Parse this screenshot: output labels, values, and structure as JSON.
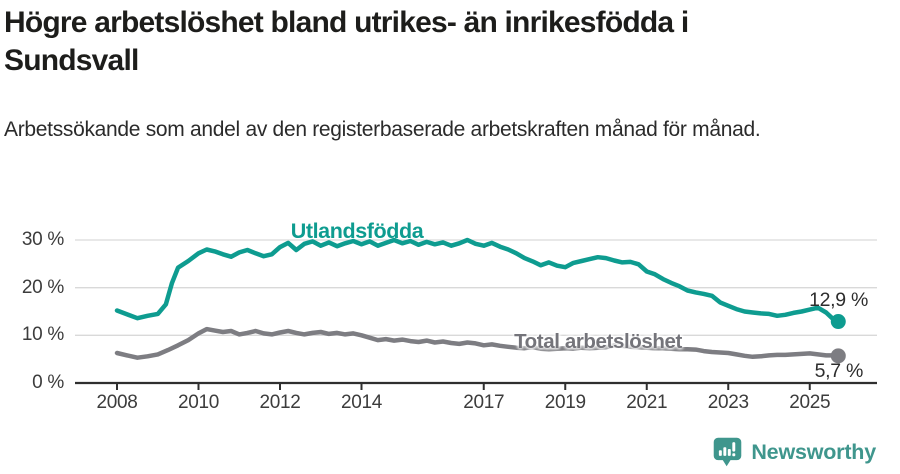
{
  "header": {
    "title": "Högre arbetslöshet bland utrikes- än inrikesfödda i Sundsvall",
    "subtitle": "Arbetssökande som andel av den registerbaserade arbetskraften månad för månad."
  },
  "footer": {
    "brand": "Newsworthy",
    "brand_color": "#3f968d",
    "logo_icon": "newsworthy-speech-bubble-chart-icon"
  },
  "chart_data": {
    "type": "line",
    "title": "Högre arbetslöshet bland utrikes- än inrikesfödda i Sundsvall",
    "subtitle": "Arbetssökande som andel av den registerbaserade arbetskraften månad för månad.",
    "unit": "%",
    "grid": "horizontal",
    "legend_position": "inline-labels",
    "xlim": [
      2008,
      2025.7
    ],
    "ylim": [
      0,
      30
    ],
    "x_tick_years": [
      2008,
      2010,
      2012,
      2014,
      2017,
      2019,
      2021,
      2023,
      2025
    ],
    "x_tick_labels": [
      "2008",
      "2010",
      "2012",
      "2014",
      "2017",
      "2019",
      "2021",
      "2023",
      "2025"
    ],
    "y_ticks": [
      0,
      10,
      20,
      30
    ],
    "y_tick_labels": [
      "0 %",
      "10 %",
      "20 %",
      "30 %"
    ],
    "colors": {
      "grid": "#d9d9d9",
      "axis": "#2f2f2f",
      "tick_text": "#3c3c3c",
      "end_label_text": "#2d2d2d"
    },
    "series": [
      {
        "name": "Utlandsfödda",
        "color": "#0e9c90",
        "end_label": "12,9 %",
        "end_value": 12.9,
        "points": [
          [
            2008.0,
            15.2
          ],
          [
            2008.25,
            14.4
          ],
          [
            2008.5,
            13.6
          ],
          [
            2008.75,
            14.1
          ],
          [
            2009.0,
            14.5
          ],
          [
            2009.2,
            16.5
          ],
          [
            2009.35,
            21.0
          ],
          [
            2009.5,
            24.2
          ],
          [
            2009.75,
            25.6
          ],
          [
            2010.0,
            27.2
          ],
          [
            2010.2,
            28.0
          ],
          [
            2010.4,
            27.6
          ],
          [
            2010.6,
            27.0
          ],
          [
            2010.8,
            26.5
          ],
          [
            2011.0,
            27.4
          ],
          [
            2011.2,
            27.9
          ],
          [
            2011.4,
            27.2
          ],
          [
            2011.6,
            26.6
          ],
          [
            2011.8,
            27.0
          ],
          [
            2012.0,
            28.5
          ],
          [
            2012.2,
            29.4
          ],
          [
            2012.4,
            27.9
          ],
          [
            2012.6,
            29.2
          ],
          [
            2012.8,
            29.7
          ],
          [
            2013.0,
            28.8
          ],
          [
            2013.2,
            29.5
          ],
          [
            2013.4,
            28.7
          ],
          [
            2013.6,
            29.3
          ],
          [
            2013.8,
            29.8
          ],
          [
            2014.0,
            29.1
          ],
          [
            2014.2,
            29.7
          ],
          [
            2014.4,
            28.8
          ],
          [
            2014.6,
            29.4
          ],
          [
            2014.8,
            30.0
          ],
          [
            2015.0,
            29.3
          ],
          [
            2015.2,
            29.8
          ],
          [
            2015.4,
            29.0
          ],
          [
            2015.6,
            29.6
          ],
          [
            2015.8,
            29.1
          ],
          [
            2016.0,
            29.5
          ],
          [
            2016.2,
            28.8
          ],
          [
            2016.4,
            29.3
          ],
          [
            2016.6,
            30.0
          ],
          [
            2016.8,
            29.2
          ],
          [
            2017.0,
            28.8
          ],
          [
            2017.2,
            29.4
          ],
          [
            2017.4,
            28.6
          ],
          [
            2017.6,
            28.0
          ],
          [
            2017.8,
            27.2
          ],
          [
            2018.0,
            26.2
          ],
          [
            2018.2,
            25.5
          ],
          [
            2018.4,
            24.7
          ],
          [
            2018.6,
            25.3
          ],
          [
            2018.8,
            24.6
          ],
          [
            2019.0,
            24.3
          ],
          [
            2019.2,
            25.2
          ],
          [
            2019.4,
            25.6
          ],
          [
            2019.6,
            26.0
          ],
          [
            2019.8,
            26.4
          ],
          [
            2020.0,
            26.2
          ],
          [
            2020.2,
            25.7
          ],
          [
            2020.4,
            25.3
          ],
          [
            2020.6,
            25.4
          ],
          [
            2020.8,
            24.9
          ],
          [
            2021.0,
            23.4
          ],
          [
            2021.2,
            22.8
          ],
          [
            2021.4,
            21.8
          ],
          [
            2021.6,
            21.0
          ],
          [
            2021.8,
            20.3
          ],
          [
            2022.0,
            19.4
          ],
          [
            2022.2,
            19.0
          ],
          [
            2022.4,
            18.7
          ],
          [
            2022.6,
            18.3
          ],
          [
            2022.8,
            16.9
          ],
          [
            2023.0,
            16.2
          ],
          [
            2023.2,
            15.5
          ],
          [
            2023.4,
            15.0
          ],
          [
            2023.6,
            14.8
          ],
          [
            2023.8,
            14.6
          ],
          [
            2024.0,
            14.5
          ],
          [
            2024.2,
            14.1
          ],
          [
            2024.4,
            14.3
          ],
          [
            2024.6,
            14.7
          ],
          [
            2024.8,
            15.0
          ],
          [
            2025.0,
            15.4
          ],
          [
            2025.2,
            15.8
          ],
          [
            2025.4,
            14.8
          ],
          [
            2025.55,
            13.6
          ],
          [
            2025.7,
            12.9
          ]
        ]
      },
      {
        "name": "Total arbetslöshet",
        "color": "#7d7d82",
        "end_label": "5,7 %",
        "end_value": 5.7,
        "points": [
          [
            2008.0,
            6.3
          ],
          [
            2008.25,
            5.8
          ],
          [
            2008.5,
            5.3
          ],
          [
            2008.75,
            5.6
          ],
          [
            2009.0,
            6.0
          ],
          [
            2009.25,
            6.9
          ],
          [
            2009.5,
            7.9
          ],
          [
            2009.75,
            9.0
          ],
          [
            2010.0,
            10.4
          ],
          [
            2010.2,
            11.3
          ],
          [
            2010.4,
            11.0
          ],
          [
            2010.6,
            10.7
          ],
          [
            2010.8,
            10.9
          ],
          [
            2011.0,
            10.2
          ],
          [
            2011.2,
            10.5
          ],
          [
            2011.4,
            10.9
          ],
          [
            2011.6,
            10.4
          ],
          [
            2011.8,
            10.2
          ],
          [
            2012.0,
            10.6
          ],
          [
            2012.2,
            10.9
          ],
          [
            2012.4,
            10.5
          ],
          [
            2012.6,
            10.2
          ],
          [
            2012.8,
            10.5
          ],
          [
            2013.0,
            10.7
          ],
          [
            2013.2,
            10.3
          ],
          [
            2013.4,
            10.5
          ],
          [
            2013.6,
            10.2
          ],
          [
            2013.8,
            10.4
          ],
          [
            2014.0,
            10.0
          ],
          [
            2014.2,
            9.5
          ],
          [
            2014.4,
            9.0
          ],
          [
            2014.6,
            9.2
          ],
          [
            2014.8,
            8.9
          ],
          [
            2015.0,
            9.1
          ],
          [
            2015.2,
            8.8
          ],
          [
            2015.4,
            8.6
          ],
          [
            2015.6,
            8.9
          ],
          [
            2015.8,
            8.5
          ],
          [
            2016.0,
            8.7
          ],
          [
            2016.2,
            8.4
          ],
          [
            2016.4,
            8.2
          ],
          [
            2016.6,
            8.5
          ],
          [
            2016.8,
            8.3
          ],
          [
            2017.0,
            7.9
          ],
          [
            2017.2,
            8.1
          ],
          [
            2017.4,
            7.8
          ],
          [
            2017.6,
            7.6
          ],
          [
            2017.8,
            7.4
          ],
          [
            2018.0,
            7.3
          ],
          [
            2018.2,
            7.5
          ],
          [
            2018.4,
            7.2
          ],
          [
            2018.6,
            7.1
          ],
          [
            2018.8,
            7.2
          ],
          [
            2019.0,
            7.3
          ],
          [
            2019.2,
            7.2
          ],
          [
            2019.4,
            7.4
          ],
          [
            2019.6,
            7.3
          ],
          [
            2019.8,
            7.4
          ],
          [
            2020.0,
            7.5
          ],
          [
            2020.2,
            7.9
          ],
          [
            2020.4,
            7.8
          ],
          [
            2020.6,
            7.6
          ],
          [
            2020.8,
            7.5
          ],
          [
            2021.0,
            7.4
          ],
          [
            2021.2,
            7.3
          ],
          [
            2021.4,
            7.3
          ],
          [
            2021.6,
            7.2
          ],
          [
            2021.8,
            7.1
          ],
          [
            2022.0,
            7.1
          ],
          [
            2022.2,
            7.0
          ],
          [
            2022.4,
            6.7
          ],
          [
            2022.6,
            6.5
          ],
          [
            2022.8,
            6.4
          ],
          [
            2023.0,
            6.3
          ],
          [
            2023.2,
            6.0
          ],
          [
            2023.4,
            5.7
          ],
          [
            2023.6,
            5.5
          ],
          [
            2023.8,
            5.6
          ],
          [
            2024.0,
            5.8
          ],
          [
            2024.2,
            5.9
          ],
          [
            2024.4,
            5.9
          ],
          [
            2024.6,
            6.0
          ],
          [
            2024.8,
            6.1
          ],
          [
            2025.0,
            6.2
          ],
          [
            2025.2,
            6.0
          ],
          [
            2025.4,
            5.8
          ],
          [
            2025.55,
            5.8
          ],
          [
            2025.7,
            5.7
          ]
        ]
      }
    ]
  }
}
